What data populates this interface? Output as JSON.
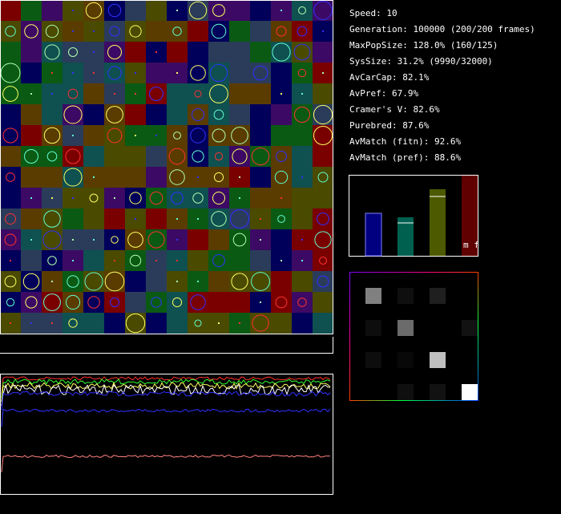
{
  "stats": [
    "Speed: 10",
    "Generation: 100000 (200/200 frames)",
    "MaxPopSize: 128.0% (160/125)",
    "SysSize: 31.2% (9990/32000)",
    "AvCarCap: 82.1%",
    "AvPref: 67.9%",
    "Cramer's V: 82.6%",
    "Purebred: 87.6%",
    "AvMatch (fitn): 92.6%",
    "AvMatch (pref): 88.6%"
  ],
  "bar_panel": {
    "label": "m f",
    "bars": [
      {
        "color": "#000080",
        "value": 0.53
      },
      {
        "color": "#006050",
        "value": 0.48,
        "marker": 0.41
      },
      {
        "color": "#4d5a00",
        "value": 0.83,
        "marker": 0.74
      },
      {
        "color": "#600000",
        "value": 1.0
      }
    ]
  },
  "heatmap": {
    "cells": [
      [
        0.5,
        0.06,
        0.12,
        0.0
      ],
      [
        0.05,
        0.42,
        0.0,
        0.07
      ],
      [
        0.05,
        0.03,
        0.75,
        0.0
      ],
      [
        0.0,
        0.06,
        0.07,
        1.0
      ]
    ]
  }
}
